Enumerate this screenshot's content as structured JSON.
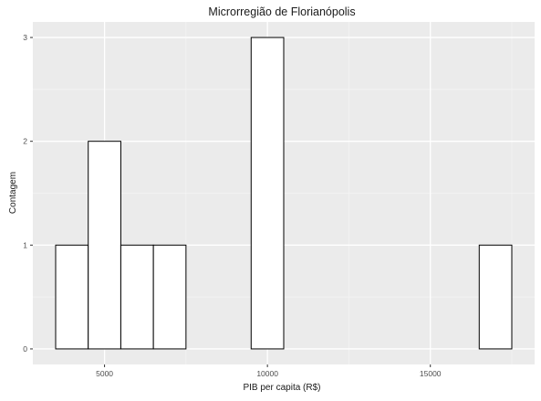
{
  "chart_data": {
    "type": "bar",
    "title": "Microrregião de  Florianópolis",
    "xlabel": "PIB per capita (R$)",
    "ylabel": "Contagem",
    "bins": [
      {
        "x0": 3500,
        "x1": 4500,
        "count": 1
      },
      {
        "x0": 4500,
        "x1": 5500,
        "count": 2
      },
      {
        "x0": 5500,
        "x1": 6500,
        "count": 1
      },
      {
        "x0": 6500,
        "x1": 7500,
        "count": 1
      },
      {
        "x0": 7500,
        "x1": 8500,
        "count": 0
      },
      {
        "x0": 8500,
        "x1": 9500,
        "count": 0
      },
      {
        "x0": 9500,
        "x1": 10500,
        "count": 3
      },
      {
        "x0": 10500,
        "x1": 11500,
        "count": 0
      },
      {
        "x0": 11500,
        "x1": 12500,
        "count": 0
      },
      {
        "x0": 12500,
        "x1": 13500,
        "count": 0
      },
      {
        "x0": 13500,
        "x1": 14500,
        "count": 0
      },
      {
        "x0": 14500,
        "x1": 15500,
        "count": 0
      },
      {
        "x0": 15500,
        "x1": 16500,
        "count": 0
      },
      {
        "x0": 16500,
        "x1": 17500,
        "count": 1
      }
    ],
    "xlim": [
      2800,
      18200
    ],
    "ylim": [
      -0.15,
      3.15
    ],
    "xticks": [
      5000,
      10000,
      15000
    ],
    "xtick_labels": [
      "5000",
      "10000",
      "15000"
    ],
    "yticks": [
      0,
      1,
      2,
      3
    ],
    "ytick_labels": [
      "0",
      "1",
      "2",
      "3"
    ],
    "grid": true,
    "colors": {
      "panel_background": "#ebebeb",
      "grid_major": "#ffffff",
      "grid_minor": "#f5f5f5",
      "bar_fill": "#ffffff",
      "bar_stroke": "#000000",
      "text": "#1a1a1a",
      "tick_text": "#4d4d4d"
    }
  }
}
